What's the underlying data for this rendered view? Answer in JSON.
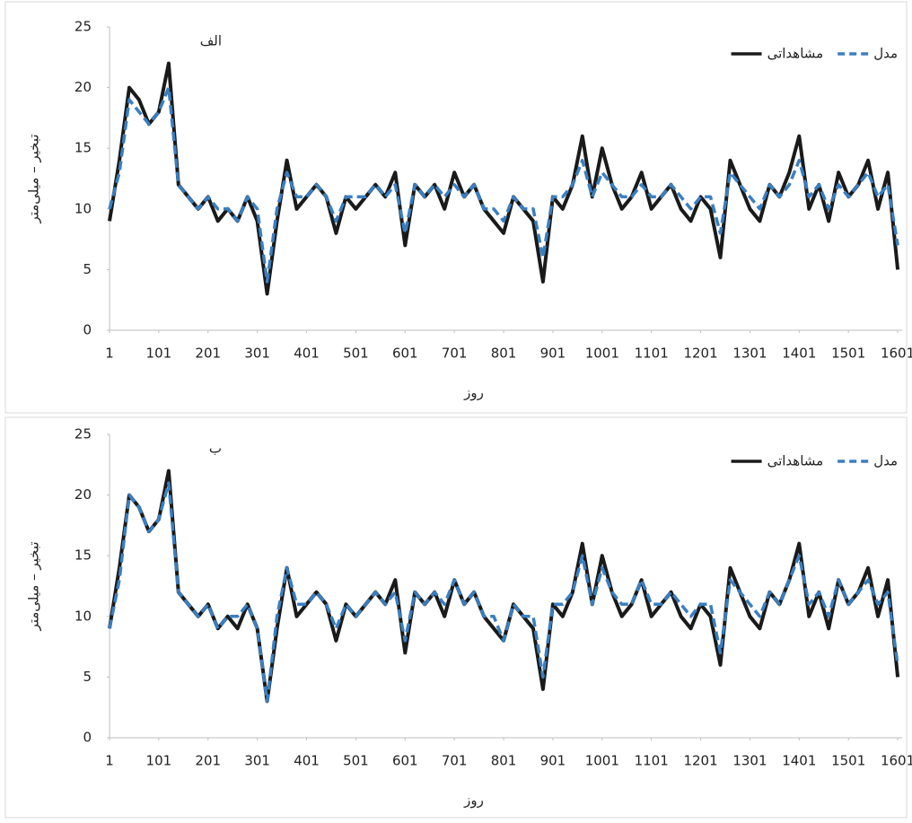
{
  "chart_data": [
    {
      "type": "line",
      "label": "الف",
      "x_label": "روز",
      "y_label": "تبخیر – میلی‌متر",
      "x": [
        1,
        21,
        41,
        61,
        81,
        101,
        121,
        141,
        161,
        181,
        201,
        221,
        241,
        261,
        281,
        301,
        321,
        341,
        361,
        381,
        401,
        421,
        441,
        461,
        481,
        501,
        521,
        541,
        561,
        581,
        601,
        621,
        641,
        661,
        681,
        701,
        721,
        741,
        761,
        781,
        801,
        821,
        841,
        861,
        881,
        901,
        921,
        941,
        961,
        981,
        1001,
        1021,
        1041,
        1061,
        1081,
        1101,
        1121,
        1141,
        1161,
        1181,
        1201,
        1221,
        1241,
        1261,
        1281,
        1301,
        1321,
        1341,
        1361,
        1381,
        1401,
        1421,
        1441,
        1461,
        1481,
        1501,
        1521,
        1541,
        1561,
        1581,
        1601
      ],
      "xlim": [
        1,
        1610
      ],
      "xticks": [
        1,
        101,
        201,
        301,
        401,
        501,
        601,
        701,
        801,
        901,
        1001,
        1101,
        1201,
        1301,
        1401,
        1501,
        1601
      ],
      "ylim": [
        0,
        25
      ],
      "yticks": [
        0,
        5,
        10,
        15,
        20,
        25
      ],
      "series": [
        {
          "name": "مشاهداتی",
          "color": "#1a1a1a",
          "dash": false,
          "values": [
            9,
            14,
            20,
            19,
            17,
            18,
            22,
            12,
            11,
            10,
            11,
            9,
            10,
            9,
            11,
            9,
            3,
            9,
            14,
            10,
            11,
            12,
            11,
            8,
            11,
            10,
            11,
            12,
            11,
            13,
            7,
            12,
            11,
            12,
            10,
            13,
            11,
            12,
            10,
            9,
            8,
            11,
            10,
            9,
            4,
            11,
            10,
            12,
            16,
            11,
            15,
            12,
            10,
            11,
            13,
            10,
            11,
            12,
            10,
            9,
            11,
            10,
            6,
            14,
            12,
            10,
            9,
            12,
            11,
            13,
            16,
            10,
            12,
            9,
            13,
            11,
            12,
            14,
            10,
            13,
            5
          ]
        },
        {
          "name": "مدل",
          "color": "#3a7fc1",
          "dash": true,
          "values": [
            10,
            13,
            19,
            18,
            17,
            18,
            20,
            12,
            11,
            10,
            11,
            10,
            10,
            9,
            11,
            10,
            4,
            10,
            13,
            11,
            11,
            12,
            11,
            9,
            11,
            11,
            11,
            12,
            11,
            12,
            8,
            12,
            11,
            12,
            11,
            12,
            11,
            12,
            10,
            10,
            9,
            11,
            10,
            10,
            6,
            11,
            11,
            12,
            14,
            11,
            13,
            12,
            11,
            11,
            12,
            11,
            11,
            12,
            11,
            10,
            11,
            11,
            8,
            13,
            12,
            11,
            10,
            12,
            11,
            12,
            14,
            11,
            12,
            10,
            12,
            11,
            12,
            13,
            11,
            12,
            7
          ]
        }
      ],
      "legend": "top-right"
    },
    {
      "type": "line",
      "label": "ب",
      "x_label": "روز",
      "y_label": "تبخیر – میلی‌متر",
      "x": [
        1,
        21,
        41,
        61,
        81,
        101,
        121,
        141,
        161,
        181,
        201,
        221,
        241,
        261,
        281,
        301,
        321,
        341,
        361,
        381,
        401,
        421,
        441,
        461,
        481,
        501,
        521,
        541,
        561,
        581,
        601,
        621,
        641,
        661,
        681,
        701,
        721,
        741,
        761,
        781,
        801,
        821,
        841,
        861,
        881,
        901,
        921,
        941,
        961,
        981,
        1001,
        1021,
        1041,
        1061,
        1081,
        1101,
        1121,
        1141,
        1161,
        1181,
        1201,
        1221,
        1241,
        1261,
        1281,
        1301,
        1321,
        1341,
        1361,
        1381,
        1401,
        1421,
        1441,
        1461,
        1481,
        1501,
        1521,
        1541,
        1561,
        1581,
        1601
      ],
      "xlim": [
        1,
        1610
      ],
      "xticks": [
        1,
        101,
        201,
        301,
        401,
        501,
        601,
        701,
        801,
        901,
        1001,
        1101,
        1201,
        1301,
        1401,
        1501,
        1601
      ],
      "ylim": [
        0,
        25
      ],
      "yticks": [
        0,
        5,
        10,
        15,
        20,
        25
      ],
      "series": [
        {
          "name": "مشاهداتی",
          "color": "#1a1a1a",
          "dash": false,
          "values": [
            9,
            14,
            20,
            19,
            17,
            18,
            22,
            12,
            11,
            10,
            11,
            9,
            10,
            9,
            11,
            9,
            3,
            9,
            14,
            10,
            11,
            12,
            11,
            8,
            11,
            10,
            11,
            12,
            11,
            13,
            7,
            12,
            11,
            12,
            10,
            13,
            11,
            12,
            10,
            9,
            8,
            11,
            10,
            9,
            4,
            11,
            10,
            12,
            16,
            11,
            15,
            12,
            10,
            11,
            13,
            10,
            11,
            12,
            10,
            9,
            11,
            10,
            6,
            14,
            12,
            10,
            9,
            12,
            11,
            13,
            16,
            10,
            12,
            9,
            13,
            11,
            12,
            14,
            10,
            13,
            5
          ]
        },
        {
          "name": "مدل",
          "color": "#3a7fc1",
          "dash": true,
          "values": [
            9,
            13,
            20,
            19,
            17,
            18,
            21,
            12,
            11,
            10,
            11,
            9,
            10,
            10,
            11,
            9,
            3,
            10,
            14,
            11,
            11,
            12,
            11,
            9,
            11,
            10,
            11,
            12,
            11,
            12,
            8,
            12,
            11,
            12,
            11,
            13,
            11,
            12,
            10,
            10,
            8,
            11,
            10,
            10,
            5,
            11,
            11,
            12,
            15,
            11,
            14,
            12,
            11,
            11,
            13,
            11,
            11,
            12,
            11,
            10,
            11,
            11,
            7,
            13,
            12,
            11,
            10,
            12,
            11,
            13,
            15,
            11,
            12,
            10,
            13,
            11,
            12,
            13,
            11,
            12,
            6
          ]
        }
      ],
      "legend": "top-right"
    }
  ]
}
